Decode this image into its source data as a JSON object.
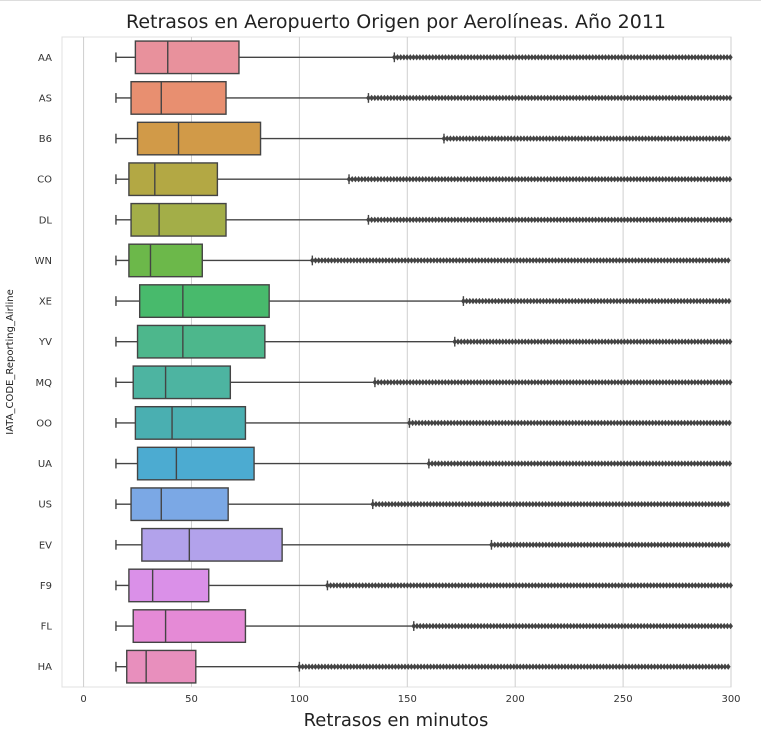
{
  "chart_data": {
    "type": "boxplot",
    "orientation": "horizontal",
    "title": "Retrasos en Aeropuerto Origen por Aerolíneas. Año 2011",
    "xlabel": "Retrasos en minutos",
    "ylabel": "IATA_CODE_Reporting_Airline",
    "xlim": [
      -10,
      300
    ],
    "xticks": [
      0,
      50,
      100,
      150,
      200,
      250,
      300
    ],
    "grid": true,
    "outlier_color": "#444444",
    "categories": [
      "AA",
      "AS",
      "B6",
      "CO",
      "DL",
      "WN",
      "XE",
      "YV",
      "MQ",
      "OO",
      "UA",
      "US",
      "EV",
      "F9",
      "FL",
      "HA"
    ],
    "series": [
      {
        "category": "AA",
        "whisker_low": 15,
        "q1": 24,
        "median": 39,
        "q3": 72,
        "whisker_high": 144,
        "outliers_start": 144,
        "outliers_end": 300,
        "color": "#e8919c"
      },
      {
        "category": "AS",
        "whisker_low": 15,
        "q1": 22,
        "median": 36,
        "q3": 66,
        "whisker_high": 132,
        "outliers_start": 132,
        "outliers_end": 300,
        "color": "#e88f70"
      },
      {
        "category": "B6",
        "whisker_low": 15,
        "q1": 25,
        "median": 44,
        "q3": 82,
        "whisker_high": 167,
        "outliers_start": 167,
        "outliers_end": 300,
        "color": "#d19a48"
      },
      {
        "category": "CO",
        "whisker_low": 15,
        "q1": 21,
        "median": 33,
        "q3": 62,
        "whisker_high": 123,
        "outliers_start": 123,
        "outliers_end": 300,
        "color": "#b3a844"
      },
      {
        "category": "DL",
        "whisker_low": 15,
        "q1": 22,
        "median": 35,
        "q3": 66,
        "whisker_high": 132,
        "outliers_start": 132,
        "outliers_end": 300,
        "color": "#a3ae48"
      },
      {
        "category": "WN",
        "whisker_low": 15,
        "q1": 21,
        "median": 31,
        "q3": 55,
        "whisker_high": 106,
        "outliers_start": 106,
        "outliers_end": 300,
        "color": "#6cb84a"
      },
      {
        "category": "XE",
        "whisker_low": 15,
        "q1": 26,
        "median": 46,
        "q3": 86,
        "whisker_high": 176,
        "outliers_start": 176,
        "outliers_end": 300,
        "color": "#48ba6c"
      },
      {
        "category": "YV",
        "whisker_low": 15,
        "q1": 25,
        "median": 46,
        "q3": 84,
        "whisker_high": 172,
        "outliers_start": 172,
        "outliers_end": 300,
        "color": "#4db78c"
      },
      {
        "category": "MQ",
        "whisker_low": 15,
        "q1": 23,
        "median": 38,
        "q3": 68,
        "whisker_high": 135,
        "outliers_start": 135,
        "outliers_end": 300,
        "color": "#4db4a1"
      },
      {
        "category": "OO",
        "whisker_low": 15,
        "q1": 24,
        "median": 41,
        "q3": 75,
        "whisker_high": 151,
        "outliers_start": 151,
        "outliers_end": 300,
        "color": "#4aafb1"
      },
      {
        "category": "UA",
        "whisker_low": 15,
        "q1": 25,
        "median": 43,
        "q3": 79,
        "whisker_high": 160,
        "outliers_start": 160,
        "outliers_end": 300,
        "color": "#4cabd1"
      },
      {
        "category": "US",
        "whisker_low": 15,
        "q1": 22,
        "median": 36,
        "q3": 67,
        "whisker_high": 134,
        "outliers_start": 134,
        "outliers_end": 300,
        "color": "#7ba8e5"
      },
      {
        "category": "EV",
        "whisker_low": 15,
        "q1": 27,
        "median": 49,
        "q3": 92,
        "whisker_high": 189,
        "outliers_start": 189,
        "outliers_end": 300,
        "color": "#b2a2eb"
      },
      {
        "category": "F9",
        "whisker_low": 15,
        "q1": 21,
        "median": 32,
        "q3": 58,
        "whisker_high": 113,
        "outliers_start": 113,
        "outliers_end": 300,
        "color": "#da90e8"
      },
      {
        "category": "FL",
        "whisker_low": 15,
        "q1": 23,
        "median": 38,
        "q3": 75,
        "whisker_high": 153,
        "outliers_start": 153,
        "outliers_end": 300,
        "color": "#e58ad6"
      },
      {
        "category": "HA",
        "whisker_low": 15,
        "q1": 20,
        "median": 29,
        "q3": 52,
        "whisker_high": 100,
        "outliers_start": 100,
        "outliers_end": 300,
        "color": "#e88fbd"
      }
    ]
  }
}
